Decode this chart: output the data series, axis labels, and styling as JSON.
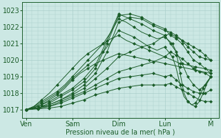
{
  "xlabel": "Pression niveau de la mer( hPa )",
  "xtick_labels": [
    "Ven",
    "Sam",
    "Dim",
    "Lun",
    "M"
  ],
  "xtick_positions": [
    0,
    24,
    48,
    72,
    96
  ],
  "ylim": [
    1016.5,
    1023.5
  ],
  "yticks": [
    1017,
    1018,
    1019,
    1020,
    1021,
    1022,
    1023
  ],
  "xlim": [
    -2,
    100
  ],
  "bg_color": "#cce8e4",
  "grid_color": "#aacfcb",
  "line_color": "#1a5c28",
  "marker": "D",
  "marker_size": 2,
  "figsize": [
    3.2,
    2.0
  ],
  "dpi": 100,
  "lines": [
    {
      "x": [
        0,
        6,
        12,
        18,
        24,
        30,
        36,
        42,
        48,
        54,
        60,
        66,
        72,
        75,
        78,
        81,
        84,
        87,
        90,
        93,
        96
      ],
      "y": [
        1017.0,
        1017.1,
        1017.3,
        1017.6,
        1018.0,
        1018.5,
        1019.2,
        1020.5,
        1022.3,
        1022.6,
        1022.5,
        1022.1,
        1021.8,
        1021.7,
        1021.5,
        1021.2,
        1021.0,
        1020.8,
        1020.6,
        1020.3,
        1020.0
      ]
    },
    {
      "x": [
        0,
        6,
        12,
        18,
        24,
        30,
        36,
        42,
        48,
        54,
        60,
        66,
        72,
        75,
        78,
        81,
        84,
        87,
        90,
        93,
        96
      ],
      "y": [
        1017.0,
        1017.1,
        1017.4,
        1017.8,
        1018.2,
        1018.7,
        1019.5,
        1021.0,
        1022.7,
        1022.8,
        1022.6,
        1022.2,
        1021.9,
        1021.5,
        1021.3,
        1021.0,
        1020.5,
        1020.0,
        1019.8,
        1019.5,
        1019.2
      ]
    },
    {
      "x": [
        0,
        6,
        12,
        18,
        24,
        30,
        36,
        42,
        48,
        54,
        60,
        66,
        72,
        75,
        78,
        81,
        84,
        87,
        90,
        93,
        96
      ],
      "y": [
        1017.0,
        1017.2,
        1017.5,
        1017.9,
        1018.3,
        1018.9,
        1019.7,
        1021.2,
        1022.8,
        1022.5,
        1022.2,
        1021.8,
        1021.5,
        1021.0,
        1020.5,
        1019.8,
        1019.0,
        1018.5,
        1018.2,
        1018.5,
        1019.0
      ]
    },
    {
      "x": [
        0,
        6,
        12,
        18,
        24,
        30,
        36,
        42,
        48,
        54,
        60,
        66,
        72,
        75,
        78,
        81,
        84,
        87,
        90,
        93,
        96
      ],
      "y": [
        1017.0,
        1017.1,
        1017.3,
        1017.6,
        1017.9,
        1018.3,
        1018.9,
        1019.5,
        1020.2,
        1020.5,
        1020.8,
        1021.0,
        1021.5,
        1021.6,
        1021.4,
        1021.2,
        1020.8,
        1020.5,
        1020.2,
        1020.1,
        1020.0
      ]
    },
    {
      "x": [
        0,
        6,
        12,
        18,
        24,
        30,
        36,
        42,
        48,
        54,
        60,
        66,
        72,
        75,
        78,
        81,
        84,
        87,
        90,
        93,
        96
      ],
      "y": [
        1017.0,
        1017.1,
        1017.2,
        1017.5,
        1017.8,
        1018.1,
        1018.5,
        1018.9,
        1019.3,
        1019.5,
        1019.7,
        1019.9,
        1020.2,
        1020.5,
        1020.3,
        1020.1,
        1019.8,
        1019.5,
        1019.3,
        1019.2,
        1019.0
      ]
    },
    {
      "x": [
        0,
        6,
        12,
        18,
        24,
        30,
        36,
        42,
        48,
        54,
        60,
        66,
        72,
        75,
        78,
        81,
        84,
        87,
        90,
        93,
        96
      ],
      "y": [
        1017.0,
        1017.1,
        1017.2,
        1017.4,
        1017.7,
        1018.0,
        1018.3,
        1018.6,
        1018.9,
        1019.0,
        1019.1,
        1019.2,
        1019.0,
        1019.1,
        1018.8,
        1018.5,
        1018.3,
        1018.1,
        1018.0,
        1018.0,
        1018.2
      ]
    },
    {
      "x": [
        0,
        6,
        12,
        18,
        24,
        30,
        36,
        42,
        48,
        54,
        60,
        66,
        72,
        75,
        78,
        81,
        84,
        87,
        90,
        93,
        96
      ],
      "y": [
        1017.0,
        1017.05,
        1017.1,
        1017.2,
        1017.4,
        1017.6,
        1017.9,
        1018.1,
        1018.3,
        1018.4,
        1018.5,
        1018.5,
        1018.5,
        1018.6,
        1018.4,
        1018.2,
        1018.0,
        1017.8,
        1017.6,
        1017.5,
        1017.5
      ]
    },
    {
      "x": [
        0,
        4,
        8,
        12,
        16,
        20,
        24,
        28,
        32,
        36,
        40,
        44,
        48,
        52,
        56,
        60,
        64,
        68,
        72,
        74,
        76,
        78,
        80,
        82,
        84,
        86,
        88,
        90,
        92,
        94,
        96
      ],
      "y": [
        1017.0,
        1017.2,
        1017.5,
        1017.8,
        1018.1,
        1018.5,
        1019.0,
        1019.5,
        1020.0,
        1020.5,
        1021.0,
        1021.7,
        1022.5,
        1022.3,
        1022.0,
        1021.7,
        1021.5,
        1021.3,
        1021.4,
        1021.2,
        1021.0,
        1020.5,
        1019.2,
        1018.0,
        1017.5,
        1017.3,
        1017.2,
        1017.5,
        1018.0,
        1018.6,
        1019.0
      ]
    },
    {
      "x": [
        0,
        4,
        8,
        12,
        16,
        20,
        24,
        28,
        32,
        36,
        40,
        44,
        48,
        52,
        56,
        60,
        64,
        68,
        72,
        74,
        76,
        78,
        80,
        82,
        84,
        86,
        88,
        90,
        92,
        94,
        96
      ],
      "y": [
        1017.0,
        1017.15,
        1017.4,
        1017.7,
        1018.0,
        1018.4,
        1018.9,
        1019.3,
        1019.7,
        1020.1,
        1020.5,
        1021.1,
        1021.8,
        1021.6,
        1021.4,
        1021.1,
        1020.8,
        1020.6,
        1020.8,
        1020.5,
        1020.2,
        1019.5,
        1018.5,
        1017.8,
        1017.5,
        1017.3,
        1017.4,
        1017.8,
        1018.3,
        1018.7,
        1019.0
      ]
    },
    {
      "x": [
        0,
        4,
        8,
        12,
        16,
        20,
        24,
        28,
        32,
        36,
        40,
        44,
        48,
        52,
        56,
        60,
        64,
        68,
        72,
        76,
        80,
        84,
        88,
        92,
        96
      ],
      "y": [
        1017.0,
        1017.2,
        1017.6,
        1018.0,
        1018.5,
        1019.0,
        1019.5,
        1020.0,
        1020.4,
        1020.7,
        1021.0,
        1021.3,
        1021.5,
        1021.2,
        1021.0,
        1020.8,
        1020.6,
        1020.4,
        1020.2,
        1020.0,
        1019.8,
        1019.7,
        1019.6,
        1019.5,
        1019.4
      ]
    },
    {
      "x": [
        0,
        4,
        8,
        12,
        16,
        20,
        24,
        28,
        32,
        36,
        40,
        44,
        48,
        52,
        56,
        60,
        64,
        68,
        72,
        76,
        80,
        84,
        88,
        92,
        96
      ],
      "y": [
        1017.0,
        1017.1,
        1017.3,
        1017.6,
        1017.9,
        1018.3,
        1018.8,
        1019.2,
        1019.5,
        1019.8,
        1020.0,
        1020.2,
        1020.4,
        1020.3,
        1020.2,
        1020.1,
        1020.0,
        1019.9,
        1019.8,
        1019.7,
        1019.6,
        1019.5,
        1019.4,
        1019.3,
        1019.2
      ]
    }
  ]
}
